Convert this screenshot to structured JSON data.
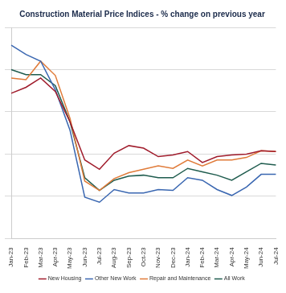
{
  "chart_data": {
    "type": "line",
    "title": "Construction Material Price Indices - % change on previous year",
    "categories": [
      "Jan-23",
      "Feb-23",
      "Mar-23",
      "Apr-23",
      "May-23",
      "Jun-23",
      "Jul-23",
      "Aug-23",
      "Sep-23",
      "Oct-23",
      "Nov-23",
      "Dec-23",
      "Jan-24",
      "Feb-24",
      "Mar-24",
      "Apr-24",
      "May-24",
      "Jun-24",
      "Jul-24"
    ],
    "series": [
      {
        "name": "New Housing",
        "color": "#a01c2c",
        "values": [
          7.2,
          7.9,
          9.0,
          7.4,
          3.8,
          -0.7,
          -1.8,
          0.1,
          1.0,
          0.7,
          -0.3,
          -0.1,
          0.3,
          -1.0,
          -0.3,
          -0.1,
          0.0,
          0.4,
          0.3
        ]
      },
      {
        "name": "Other New Work",
        "color": "#3a67b1",
        "values": [
          12.9,
          11.8,
          11.0,
          7.6,
          2.8,
          -5.1,
          -5.7,
          -4.2,
          -4.6,
          -4.6,
          -4.2,
          -4.3,
          -2.8,
          -3.1,
          -4.2,
          -4.9,
          -3.9,
          -2.4,
          -2.4
        ]
      },
      {
        "name": "Repair and Maintenance",
        "color": "#e07b39",
        "values": [
          9.0,
          8.8,
          11.0,
          9.3,
          4.2,
          -3.2,
          -4.3,
          -2.9,
          -2.2,
          -1.8,
          -1.4,
          -1.7,
          -0.7,
          -1.4,
          -0.7,
          -0.7,
          -0.4,
          0.4,
          0.3
        ]
      },
      {
        "name": "All Work",
        "color": "#1f5c4e",
        "values": [
          10.0,
          9.4,
          9.4,
          8.1,
          3.8,
          -2.8,
          -4.3,
          -3.1,
          -2.6,
          -2.5,
          -2.8,
          -2.8,
          -1.7,
          -2.1,
          -2.5,
          -3.1,
          -2.1,
          -1.1,
          -1.3
        ]
      }
    ],
    "ylim": [
      -10,
      15
    ],
    "yticks": [
      -10,
      -5,
      0,
      5,
      10,
      15
    ],
    "grid": true,
    "legend": "bottom",
    "tick_labels": "x"
  }
}
